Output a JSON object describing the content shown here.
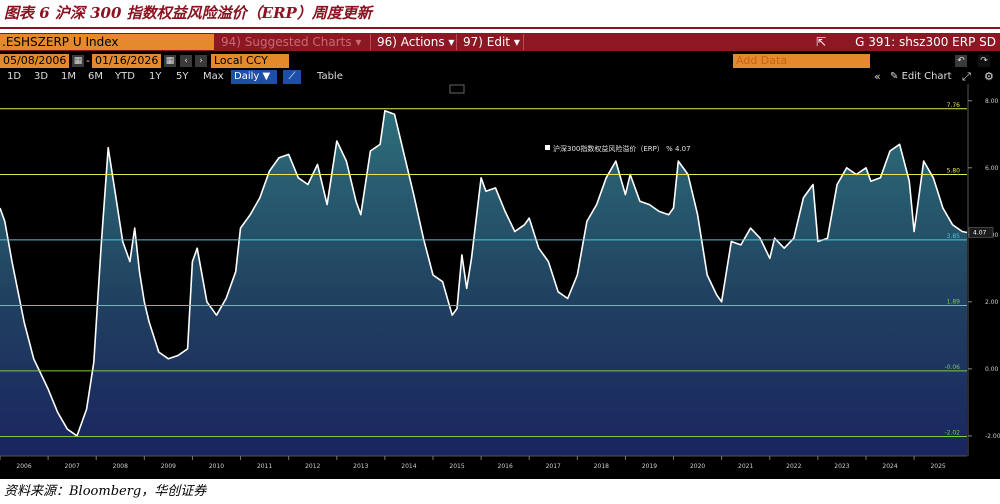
{
  "caption": {
    "title": "图表 6 沪深 300 指数权益风险溢价（ERP）周度更新"
  },
  "toolbar": {
    "ticker": ".ESHSZERP U Index",
    "suggested_charts": "94) Suggested Charts ▾",
    "actions": "96) Actions ▾",
    "edit": "97) Edit ▾",
    "chart_id": "G 391: shsz300 ERP SD",
    "start_date": "05/08/2006",
    "end_date": "01/16/2026",
    "currency": "Local CCY",
    "add_data_placeholder": "Add Data",
    "edit_chart": "Edit Chart",
    "ranges": [
      "1D",
      "3D",
      "1M",
      "6M",
      "YTD",
      "1Y",
      "5Y",
      "Max"
    ],
    "frequency": "Daily ▼",
    "table": "Table"
  },
  "colors": {
    "brand": "#8b1220",
    "header_bar": "#8c1823",
    "input_orange": "#e48a2c",
    "active_blue": "#1e4fa8",
    "line": "#ffffff",
    "area_top": "#2d6f7a",
    "area_bottom": "#1a2560"
  },
  "chart_data": {
    "type": "area",
    "legend": "沪深300指数权益风险溢价（ERP） % 4.07",
    "legend_position": "top-right",
    "ylim": [
      -2.6,
      8.5
    ],
    "y_ticks": [
      "8.00",
      "6.00",
      "4.00",
      "2.00",
      "0.00",
      "-2.00"
    ],
    "x_ticks": [
      "2006",
      "2007",
      "2008",
      "2009",
      "2010",
      "2011",
      "2012",
      "2013",
      "2014",
      "2015",
      "2016",
      "2017",
      "2018",
      "2019",
      "2020",
      "2021",
      "2022",
      "2023",
      "2024",
      "2025"
    ],
    "xlim": [
      2006.0,
      2026.1
    ],
    "reference_lines": [
      {
        "label": "7.76",
        "value": 7.76,
        "color": "#e8e84a"
      },
      {
        "label": "5.80",
        "value": 5.8,
        "color": "#e8e84a"
      },
      {
        "label": "3.85",
        "value": 3.85,
        "color": "#4fc7d8"
      },
      {
        "label": "1.89",
        "value": 1.89,
        "color": "#7ccd3a"
      },
      {
        "label": "-0.06",
        "value": -0.06,
        "color": "#7ccd3a"
      },
      {
        "label": "-2.02",
        "value": -2.02,
        "color": "#7ccd3a"
      }
    ],
    "last_value": {
      "label": "4.07",
      "value": 4.07
    },
    "series": [
      {
        "x": [
          2006.0,
          2006.1,
          2006.25,
          2006.5,
          2006.7,
          2007.0,
          2007.2,
          2007.4,
          2007.6,
          2007.8,
          2007.95,
          2008.1,
          2008.25,
          2008.4,
          2008.55,
          2008.7,
          2008.8,
          2008.9,
          2009.0,
          2009.1,
          2009.3,
          2009.5,
          2009.7,
          2009.9,
          2010.0,
          2010.1,
          2010.3,
          2010.5,
          2010.7,
          2010.9,
          2011.0,
          2011.2,
          2011.4,
          2011.6,
          2011.8,
          2012.0,
          2012.2,
          2012.4,
          2012.6,
          2012.8,
          2013.0,
          2013.2,
          2013.4,
          2013.5,
          2013.7,
          2013.9,
          2014.0,
          2014.2,
          2014.4,
          2014.6,
          2014.8,
          2015.0,
          2015.2,
          2015.4,
          2015.5,
          2015.6,
          2015.7,
          2015.8,
          2016.0,
          2016.1,
          2016.3,
          2016.5,
          2016.7,
          2016.9,
          2017.0,
          2017.2,
          2017.4,
          2017.6,
          2017.8,
          2018.0,
          2018.2,
          2018.4,
          2018.6,
          2018.8,
          2019.0,
          2019.1,
          2019.3,
          2019.5,
          2019.7,
          2019.9,
          2020.0,
          2020.1,
          2020.3,
          2020.5,
          2020.7,
          2020.9,
          2021.0,
          2021.2,
          2021.4,
          2021.6,
          2021.8,
          2022.0,
          2022.1,
          2022.3,
          2022.5,
          2022.7,
          2022.9,
          2023.0,
          2023.2,
          2023.4,
          2023.6,
          2023.8,
          2024.0,
          2024.1,
          2024.3,
          2024.5,
          2024.7,
          2024.9,
          2025.0,
          2025.2,
          2025.4,
          2025.6,
          2025.8,
          2026.0,
          2026.1
        ],
        "y": [
          4.8,
          4.4,
          3.2,
          1.4,
          0.3,
          -0.6,
          -1.3,
          -1.8,
          -2.0,
          -1.2,
          0.2,
          3.6,
          6.6,
          5.2,
          3.8,
          3.2,
          4.2,
          2.9,
          2.0,
          1.4,
          0.5,
          0.3,
          0.4,
          0.6,
          3.2,
          3.6,
          2.0,
          1.6,
          2.1,
          2.9,
          4.2,
          4.6,
          5.1,
          5.9,
          6.3,
          6.4,
          5.7,
          5.5,
          6.1,
          4.9,
          6.8,
          6.2,
          5.0,
          4.6,
          6.5,
          6.7,
          7.7,
          7.6,
          6.4,
          5.2,
          3.9,
          2.8,
          2.6,
          1.6,
          1.8,
          3.4,
          2.4,
          3.3,
          5.7,
          5.3,
          5.4,
          4.7,
          4.1,
          4.3,
          4.5,
          3.6,
          3.2,
          2.3,
          2.1,
          2.8,
          4.4,
          4.9,
          5.7,
          6.2,
          5.2,
          5.8,
          5.0,
          4.9,
          4.7,
          4.6,
          4.8,
          6.2,
          5.8,
          4.6,
          2.8,
          2.2,
          2.0,
          3.8,
          3.7,
          4.2,
          3.9,
          3.3,
          3.9,
          3.6,
          3.9,
          5.1,
          5.5,
          3.8,
          3.9,
          5.5,
          6.0,
          5.8,
          6.0,
          5.6,
          5.7,
          6.5,
          6.7,
          5.6,
          4.1,
          6.2,
          5.7,
          4.8,
          4.3,
          4.1,
          4.07
        ]
      }
    ]
  },
  "source": "资料来源：Bloomberg，华创证券"
}
